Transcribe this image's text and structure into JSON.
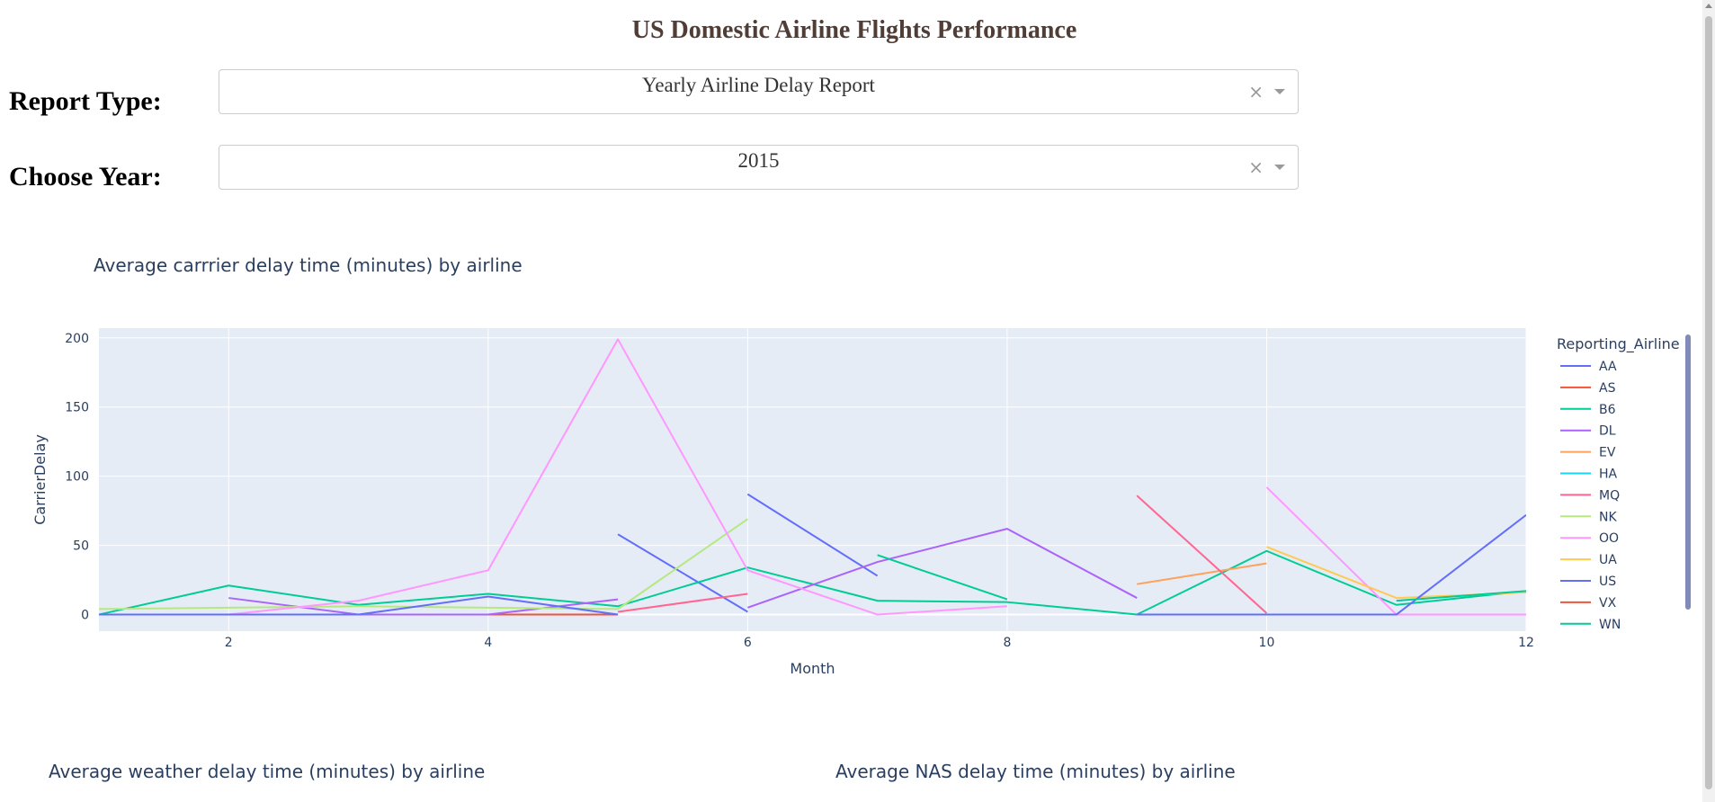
{
  "page": {
    "title": "US Domestic Airline Flights Performance"
  },
  "controls": {
    "report_type_label": "Report Type:",
    "report_type_value": "Yearly Airline Delay Report",
    "year_label": "Choose Year:",
    "year_value": "2015",
    "clear_glyph": "×"
  },
  "graphs": {
    "carrier_title": "Average carrrier delay time (minutes) by airline",
    "weather_title": "Average weather delay time (minutes) by airline",
    "nas_title": "Average NAS delay time (minutes) by airline"
  },
  "chart_data": {
    "type": "line",
    "title": "Average carrrier delay time (minutes) by airline",
    "xlabel": "Month",
    "ylabel": "CarrierDelay",
    "xlim": [
      1,
      12
    ],
    "ylim": [
      -12,
      207
    ],
    "xticks": [
      2,
      4,
      6,
      8,
      10,
      12
    ],
    "yticks": [
      0,
      50,
      100,
      150,
      200
    ],
    "grid": true,
    "legend_title": "Reporting_Airline",
    "legend_position": "right",
    "series": [
      {
        "name": "AA",
        "color": "#636efa",
        "segments": [
          [
            [
              5,
              58
            ],
            [
              6,
              2
            ]
          ],
          [
            [
              6,
              87
            ],
            [
              7,
              28
            ]
          ]
        ]
      },
      {
        "name": "AS",
        "color": "#EF553B",
        "segments": [
          [
            [
              2,
              0
            ],
            [
              3,
              0
            ],
            [
              4,
              0
            ],
            [
              5,
              0
            ]
          ]
        ]
      },
      {
        "name": "B6",
        "color": "#00cc96",
        "segments": [
          [
            [
              1,
              0
            ],
            [
              2,
              21
            ],
            [
              3,
              7
            ],
            [
              4,
              15
            ],
            [
              5,
              6
            ],
            [
              6,
              34
            ],
            [
              7,
              10
            ],
            [
              8,
              9
            ],
            [
              9,
              0
            ]
          ],
          [
            [
              9,
              0
            ],
            [
              10,
              46
            ],
            [
              11,
              7
            ],
            [
              12,
              17
            ]
          ]
        ]
      },
      {
        "name": "DL",
        "color": "#ab63fa",
        "segments": [
          [
            [
              2,
              12
            ],
            [
              3,
              0
            ],
            [
              4,
              0
            ],
            [
              5,
              11
            ]
          ],
          [
            [
              6,
              5
            ],
            [
              7,
              38
            ],
            [
              8,
              62
            ],
            [
              9,
              12
            ]
          ]
        ]
      },
      {
        "name": "EV",
        "color": "#FFA15A",
        "segments": [
          [
            [
              9,
              22
            ],
            [
              10,
              37
            ]
          ]
        ]
      },
      {
        "name": "HA",
        "color": "#19d3f3",
        "segments": [
          [
            [
              2,
              0
            ],
            [
              3,
              0
            ]
          ]
        ]
      },
      {
        "name": "MQ",
        "color": "#FF6692",
        "segments": [
          [
            [
              5,
              2
            ],
            [
              6,
              15
            ]
          ],
          [
            [
              9,
              86
            ],
            [
              10,
              1
            ]
          ]
        ]
      },
      {
        "name": "NK",
        "color": "#B6E880",
        "segments": [
          [
            [
              1,
              4
            ],
            [
              2,
              5
            ],
            [
              3,
              6
            ],
            [
              4,
              5
            ],
            [
              5,
              4
            ],
            [
              6,
              69
            ]
          ]
        ]
      },
      {
        "name": "OO",
        "color": "#FF97FF",
        "segments": [
          [
            [
              1,
              0
            ],
            [
              2,
              0
            ],
            [
              3,
              10
            ],
            [
              4,
              32
            ],
            [
              5,
              199
            ],
            [
              6,
              32
            ],
            [
              7,
              0
            ],
            [
              8,
              6
            ]
          ],
          [
            [
              10,
              92
            ],
            [
              11,
              0
            ],
            [
              12,
              0
            ]
          ]
        ]
      },
      {
        "name": "UA",
        "color": "#FECB52",
        "segments": [
          [
            [
              10,
              49
            ],
            [
              11,
              12
            ],
            [
              12,
              16
            ]
          ]
        ]
      },
      {
        "name": "US",
        "color": "#636efa",
        "segments": [
          [
            [
              1,
              0
            ],
            [
              2,
              0
            ],
            [
              3,
              0
            ],
            [
              4,
              13
            ],
            [
              5,
              0
            ]
          ],
          [
            [
              9,
              0
            ],
            [
              10,
              0
            ],
            [
              11,
              0
            ],
            [
              12,
              72
            ]
          ]
        ]
      },
      {
        "name": "VX",
        "color": "#EF553B",
        "segments": []
      },
      {
        "name": "WN",
        "color": "#00cc96",
        "segments": [
          [
            [
              7,
              43
            ],
            [
              8,
              11
            ]
          ],
          [
            [
              11,
              10
            ],
            [
              12,
              17
            ]
          ]
        ]
      }
    ]
  }
}
